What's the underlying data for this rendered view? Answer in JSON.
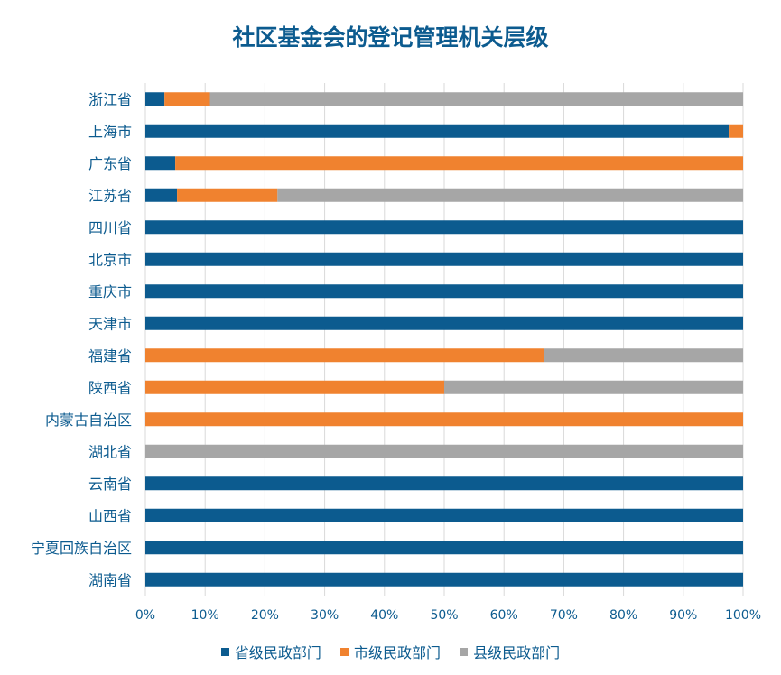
{
  "chart_data": {
    "type": "bar",
    "orientation": "horizontal",
    "stacked": "percent",
    "title": "社区基金会的登记管理机关层级",
    "categories": [
      "浙江省",
      "上海市",
      "广东省",
      "江苏省",
      "四川省",
      "北京市",
      "重庆市",
      "天津市",
      "福建省",
      "陕西省",
      "内蒙古自治区",
      "湖北省",
      "云南省",
      "山西省",
      "宁夏回族自治区",
      "湖南省"
    ],
    "series": [
      {
        "name": "省级民政部门",
        "color": "#0c5b8f",
        "values": [
          3.2,
          97.6,
          5.0,
          5.3,
          100,
          100,
          100,
          100,
          0,
          0,
          0,
          0,
          100,
          100,
          100,
          100
        ]
      },
      {
        "name": "市级民政部门",
        "color": "#f0822f",
        "values": [
          7.6,
          2.4,
          95.0,
          16.8,
          0,
          0,
          0,
          0,
          66.7,
          50,
          100,
          0,
          0,
          0,
          0,
          0
        ]
      },
      {
        "name": "县级民政部门",
        "color": "#a6a6a6",
        "values": [
          89.2,
          0,
          0,
          77.9,
          0,
          0,
          0,
          0,
          33.3,
          50,
          0,
          100,
          0,
          0,
          0,
          0
        ]
      }
    ],
    "xlim": [
      0,
      100
    ],
    "xticks": [
      "0%",
      "10%",
      "20%",
      "30%",
      "40%",
      "50%",
      "60%",
      "70%",
      "80%",
      "90%",
      "100%"
    ],
    "grid": true,
    "legend_position": "bottom"
  }
}
